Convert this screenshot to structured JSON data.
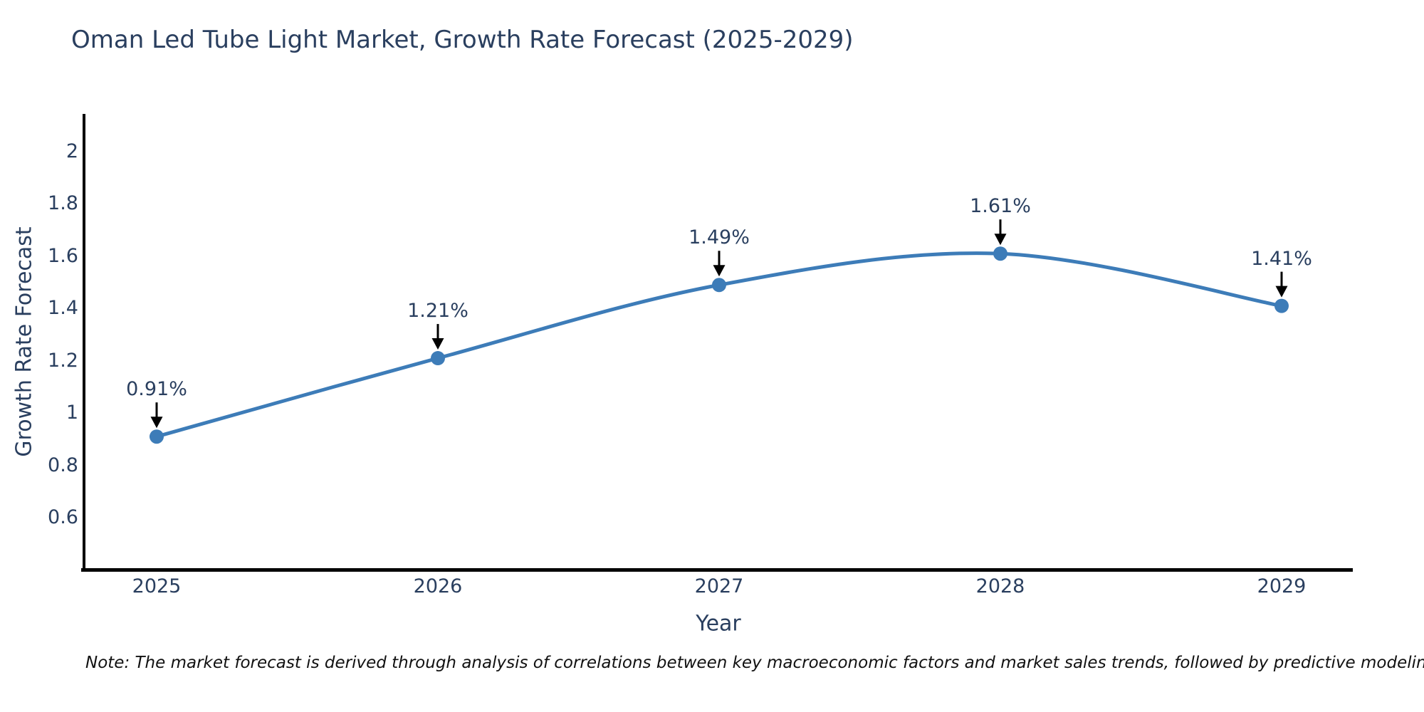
{
  "title": "Oman Led Tube Light Market, Growth Rate Forecast (2025-2029)",
  "note": "Note: The market forecast is derived through analysis of correlations between key macroeconomic factors and market sales trends, followed by predictive modeling to project future sales",
  "chart_data": {
    "type": "line",
    "title": "Oman Led Tube Light Market, Growth Rate Forecast (2025-2029)",
    "x": [
      2025,
      2026,
      2027,
      2028,
      2029
    ],
    "series": [
      {
        "name": "Growth Rate Forecast",
        "values": [
          0.91,
          1.21,
          1.49,
          1.61,
          1.41
        ]
      }
    ],
    "point_labels": [
      "0.91%",
      "1.21%",
      "1.49%",
      "1.61%",
      "1.41%"
    ],
    "xlabel": "Year",
    "ylabel": "Growth Rate Forecast",
    "yticks": [
      0.6,
      0.8,
      1,
      1.2,
      1.4,
      1.6,
      1.8,
      2
    ],
    "ytick_labels": [
      "0.6",
      "0.8",
      "1",
      "1.2",
      "1.4",
      "1.6",
      "1.8",
      "2"
    ],
    "ylim": [
      0.4,
      2.15
    ],
    "grid": false,
    "legend_position": "none",
    "line_shape": "spline",
    "marker": "circle",
    "annotation_style": "arrow-down",
    "colors": {
      "line": "#3d7cb8",
      "marker": "#3d7cb8",
      "arrow": "#000000",
      "axis": "#000000",
      "text": "#2a3f5f",
      "note_text": "#111111",
      "background": "#ffffff"
    }
  }
}
